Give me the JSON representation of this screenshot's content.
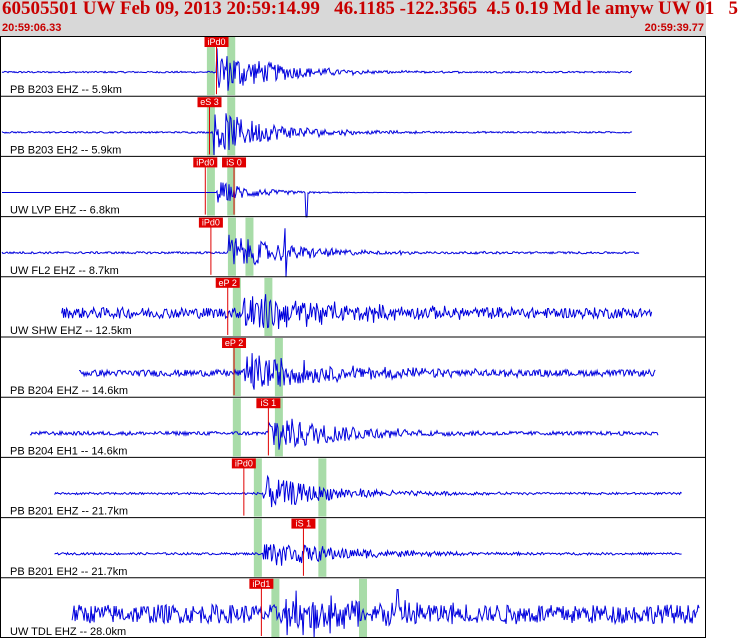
{
  "header": {
    "title": "60505501 UW Feb 09, 2013 20:59:14.99   46.1185 -122.3565  4.5 0.19 Md le amyw UW 01   5",
    "start_time": "20:59:06.33",
    "end_time": "20:59:39.77"
  },
  "colors": {
    "trace": "#0000dd",
    "pick": "#e00000",
    "window": "#a8dca8",
    "header_bg": "#d8d8d8",
    "title": "#c80000"
  },
  "chart_data": {
    "type": "seismogram",
    "time_range": [
      "20:59:06.33",
      "20:59:39.77"
    ],
    "channels": [
      {
        "label": "PB B203 EHZ -- 5.9km",
        "start": 0.0,
        "end": 0.9,
        "picks": [
          {
            "label": "iPd0",
            "t": 0.306
          }
        ],
        "windows": [
          0.298,
          0.327
        ],
        "onset": 0.306,
        "noise": 0.03,
        "amp": 0.9,
        "decay": 0.18
      },
      {
        "label": "PB B203 EH2 -- 5.9km",
        "start": 0.0,
        "end": 0.9,
        "picks": [
          {
            "label": "eS 3",
            "t": 0.296
          }
        ],
        "windows": [
          0.298,
          0.327
        ],
        "onset": 0.3,
        "noise": 0.03,
        "amp": 0.9,
        "decay": 0.18
      },
      {
        "label": "UW LVP EHZ -- 6.8km",
        "start": 0.0,
        "end": 0.905,
        "picks": [
          {
            "label": "iPd0",
            "t": 0.29
          },
          {
            "label": "iS 0",
            "t": 0.331
          }
        ],
        "windows": [
          0.298,
          0.327
        ],
        "onset": 0.306,
        "noise": 0.0,
        "amp": 0.45,
        "decay": 0.12,
        "spike": 0.435
      },
      {
        "label": "UW FL2 EHZ -- 8.7km",
        "start": 0.0,
        "end": 0.91,
        "picks": [
          {
            "label": "iPd0",
            "t": 0.298
          }
        ],
        "windows": [
          0.328,
          0.353
        ],
        "onset": 0.322,
        "noise": 0.04,
        "amp": 0.7,
        "decay": 0.2,
        "spike": 0.405
      },
      {
        "label": "UW SHW EHZ -- 12.5km",
        "start": 0.085,
        "end": 0.928,
        "picks": [
          {
            "label": "eP 2",
            "t": 0.322
          }
        ],
        "windows": [
          0.335,
          0.38
        ],
        "onset": 0.34,
        "noise": 0.2,
        "amp": 0.8,
        "decay": 0.28
      },
      {
        "label": "PB B204 EHZ -- 14.6km",
        "start": 0.11,
        "end": 0.933,
        "picks": [
          {
            "label": "eP 2",
            "t": 0.331
          }
        ],
        "windows": [
          0.335,
          0.395
        ],
        "onset": 0.345,
        "noise": 0.12,
        "amp": 0.75,
        "decay": 0.28
      },
      {
        "label": "PB B204 EH1 -- 14.6km",
        "start": 0.04,
        "end": 0.936,
        "picks": [
          {
            "label": "iS 1",
            "t": 0.38
          }
        ],
        "windows": [
          0.335,
          0.395
        ],
        "onset": 0.38,
        "noise": 0.07,
        "amp": 0.8,
        "decay": 0.22
      },
      {
        "label": "PB B201 EHZ -- 21.7km",
        "start": 0.075,
        "end": 0.97,
        "picks": [
          {
            "label": "iPd0",
            "t": 0.345
          }
        ],
        "windows": [
          0.365,
          0.457
        ],
        "onset": 0.372,
        "noise": 0.04,
        "amp": 0.65,
        "decay": 0.22
      },
      {
        "label": "PB B201 EH2 -- 21.7km",
        "start": 0.075,
        "end": 0.97,
        "picks": [
          {
            "label": "iS 1",
            "t": 0.43
          }
        ],
        "windows": [
          0.365,
          0.457
        ],
        "onset": 0.372,
        "noise": 0.04,
        "amp": 0.55,
        "decay": 0.25
      },
      {
        "label": "UW TDL EHZ -- 28.0km",
        "start": 0.1,
        "end": 0.995,
        "picks": [
          {
            "label": "iPd1",
            "t": 0.37
          }
        ],
        "windows": [
          0.39,
          0.515
        ],
        "onset": 0.405,
        "noise": 0.35,
        "amp": 0.8,
        "decay": 0.3,
        "spike": 0.565
      }
    ]
  }
}
